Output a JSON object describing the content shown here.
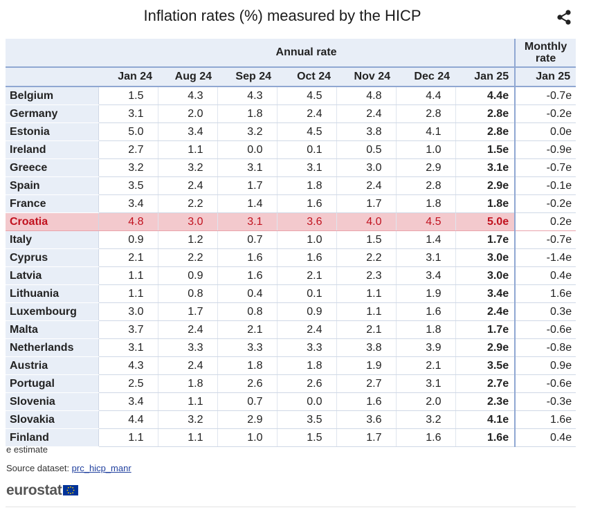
{
  "title": "Inflation rates (%) measured by the HICP",
  "icons": {
    "share": "share-icon",
    "eu_flag": "eu-flag-icon"
  },
  "colors": {
    "header_bg": "#e8eef7",
    "rule": "#8fa7d2",
    "highlight_bg": "#f3c9cd",
    "highlight_text": "#c1121f"
  },
  "chart_data": {
    "type": "table",
    "title": "Inflation rates (%) measured by the HICP",
    "column_groups": [
      {
        "label": "Annual rate",
        "columns": [
          "Jan 24",
          "Aug 24",
          "Sep 24",
          "Oct 24",
          "Nov 24",
          "Dec 24",
          "Jan 25"
        ]
      },
      {
        "label": "Monthly rate",
        "columns": [
          "Jan 25"
        ]
      }
    ],
    "months": [
      "Jan 24",
      "Aug 24",
      "Sep 24",
      "Oct 24",
      "Nov 24",
      "Dec 24",
      "Jan 25",
      "Jan 25"
    ],
    "highlighted_row": "Croatia",
    "rows": [
      {
        "country": "Belgium",
        "values": [
          "1.5",
          "4.3",
          "4.3",
          "4.5",
          "4.8",
          "4.4",
          "4.4e",
          "-0.7e"
        ]
      },
      {
        "country": "Germany",
        "values": [
          "3.1",
          "2.0",
          "1.8",
          "2.4",
          "2.4",
          "2.8",
          "2.8e",
          "-0.2e"
        ]
      },
      {
        "country": "Estonia",
        "values": [
          "5.0",
          "3.4",
          "3.2",
          "4.5",
          "3.8",
          "4.1",
          "2.8e",
          "0.0e"
        ]
      },
      {
        "country": "Ireland",
        "values": [
          "2.7",
          "1.1",
          "0.0",
          "0.1",
          "0.5",
          "1.0",
          "1.5e",
          "-0.9e"
        ]
      },
      {
        "country": "Greece",
        "values": [
          "3.2",
          "3.2",
          "3.1",
          "3.1",
          "3.0",
          "2.9",
          "3.1e",
          "-0.7e"
        ]
      },
      {
        "country": "Spain",
        "values": [
          "3.5",
          "2.4",
          "1.7",
          "1.8",
          "2.4",
          "2.8",
          "2.9e",
          "-0.1e"
        ]
      },
      {
        "country": "France",
        "values": [
          "3.4",
          "2.2",
          "1.4",
          "1.6",
          "1.7",
          "1.8",
          "1.8e",
          "-0.2e"
        ]
      },
      {
        "country": "Croatia",
        "values": [
          "4.8",
          "3.0",
          "3.1",
          "3.6",
          "4.0",
          "4.5",
          "5.0e",
          "0.2e"
        ]
      },
      {
        "country": "Italy",
        "values": [
          "0.9",
          "1.2",
          "0.7",
          "1.0",
          "1.5",
          "1.4",
          "1.7e",
          "-0.7e"
        ]
      },
      {
        "country": "Cyprus",
        "values": [
          "2.1",
          "2.2",
          "1.6",
          "1.6",
          "2.2",
          "3.1",
          "3.0e",
          "-1.4e"
        ]
      },
      {
        "country": "Latvia",
        "values": [
          "1.1",
          "0.9",
          "1.6",
          "2.1",
          "2.3",
          "3.4",
          "3.0e",
          "0.4e"
        ]
      },
      {
        "country": "Lithuania",
        "values": [
          "1.1",
          "0.8",
          "0.4",
          "0.1",
          "1.1",
          "1.9",
          "3.4e",
          "1.6e"
        ]
      },
      {
        "country": "Luxembourg",
        "values": [
          "3.0",
          "1.7",
          "0.8",
          "0.9",
          "1.1",
          "1.6",
          "2.4e",
          "0.3e"
        ]
      },
      {
        "country": "Malta",
        "values": [
          "3.7",
          "2.4",
          "2.1",
          "2.4",
          "2.1",
          "1.8",
          "1.7e",
          "-0.6e"
        ]
      },
      {
        "country": "Netherlands",
        "values": [
          "3.1",
          "3.3",
          "3.3",
          "3.3",
          "3.8",
          "3.9",
          "2.9e",
          "-0.8e"
        ]
      },
      {
        "country": "Austria",
        "values": [
          "4.3",
          "2.4",
          "1.8",
          "1.8",
          "1.9",
          "2.1",
          "3.5e",
          "0.9e"
        ]
      },
      {
        "country": "Portugal",
        "values": [
          "2.5",
          "1.8",
          "2.6",
          "2.6",
          "2.7",
          "3.1",
          "2.7e",
          "-0.6e"
        ]
      },
      {
        "country": "Slovenia",
        "values": [
          "3.4",
          "1.1",
          "0.7",
          "0.0",
          "1.6",
          "2.0",
          "2.3e",
          "-0.3e"
        ]
      },
      {
        "country": "Slovakia",
        "values": [
          "4.4",
          "3.2",
          "2.9",
          "3.5",
          "3.6",
          "3.2",
          "4.1e",
          "1.6e"
        ]
      },
      {
        "country": "Finland",
        "values": [
          "1.1",
          "1.1",
          "1.0",
          "1.5",
          "1.7",
          "1.6",
          "1.6e",
          "0.4e"
        ]
      }
    ]
  },
  "footer": {
    "note": "e estimate",
    "source_prefix": "Source dataset: ",
    "source_link": "prc_hicp_manr",
    "logo": "eurostat"
  }
}
